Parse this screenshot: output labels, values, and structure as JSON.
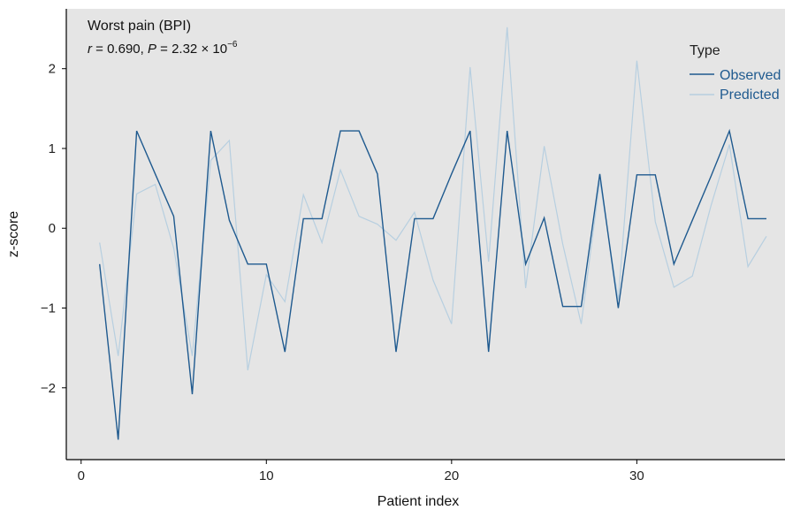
{
  "chart_data": {
    "type": "line",
    "title": "Worst pain (BPI)",
    "subtitle": {
      "r_symbol": "r",
      "r_value": " = 0.690, ",
      "p_symbol": "P",
      "p_value": " = 2.32 × 10",
      "p_exponent": "−6"
    },
    "xlabel": "Patient index",
    "ylabel": "z-score",
    "xlim": [
      -0.8,
      38
    ],
    "ylim": [
      -2.9,
      2.75
    ],
    "x_ticks": [
      0,
      10,
      20,
      30
    ],
    "x_tick_labels": [
      "0",
      "10",
      "20",
      "30"
    ],
    "y_ticks": [
      -2,
      -1,
      0,
      1,
      2
    ],
    "y_tick_labels": [
      "−2",
      "−1",
      "0",
      "1",
      "2"
    ],
    "grid": false,
    "legend": {
      "title": "Type",
      "position": "top-right"
    },
    "x": [
      1,
      2,
      3,
      4,
      5,
      6,
      7,
      8,
      9,
      10,
      11,
      12,
      13,
      14,
      15,
      16,
      17,
      18,
      19,
      20,
      21,
      22,
      23,
      24,
      25,
      26,
      27,
      28,
      29,
      30,
      31,
      32,
      33,
      34,
      35,
      36,
      37
    ],
    "series": [
      {
        "name": "Observed",
        "color": "#1f5a8f",
        "values": [
          -0.45,
          -2.65,
          1.22,
          0.68,
          0.15,
          -2.08,
          1.22,
          0.1,
          -0.45,
          -0.45,
          -1.55,
          0.12,
          0.12,
          1.22,
          1.22,
          0.68,
          -1.55,
          0.12,
          0.12,
          0.68,
          1.22,
          -1.55,
          1.22,
          -0.45,
          0.13,
          -0.98,
          -0.98,
          0.68,
          -1.0,
          0.67,
          0.67,
          -0.45,
          0.1,
          0.65,
          1.22,
          0.12,
          0.12
        ]
      },
      {
        "name": "Predicted",
        "color": "#b7cfe0",
        "values": [
          -0.18,
          -1.6,
          0.43,
          0.55,
          -0.25,
          -1.6,
          0.85,
          1.1,
          -1.78,
          -0.58,
          -0.92,
          0.42,
          -0.18,
          0.73,
          0.15,
          0.05,
          -0.15,
          0.2,
          -0.65,
          -1.2,
          2.02,
          -0.42,
          2.52,
          -0.75,
          1.03,
          -0.2,
          -1.2,
          0.6,
          -0.9,
          2.1,
          0.08,
          -0.74,
          -0.6,
          0.28,
          1.05,
          -0.48,
          -0.1
        ]
      }
    ]
  }
}
